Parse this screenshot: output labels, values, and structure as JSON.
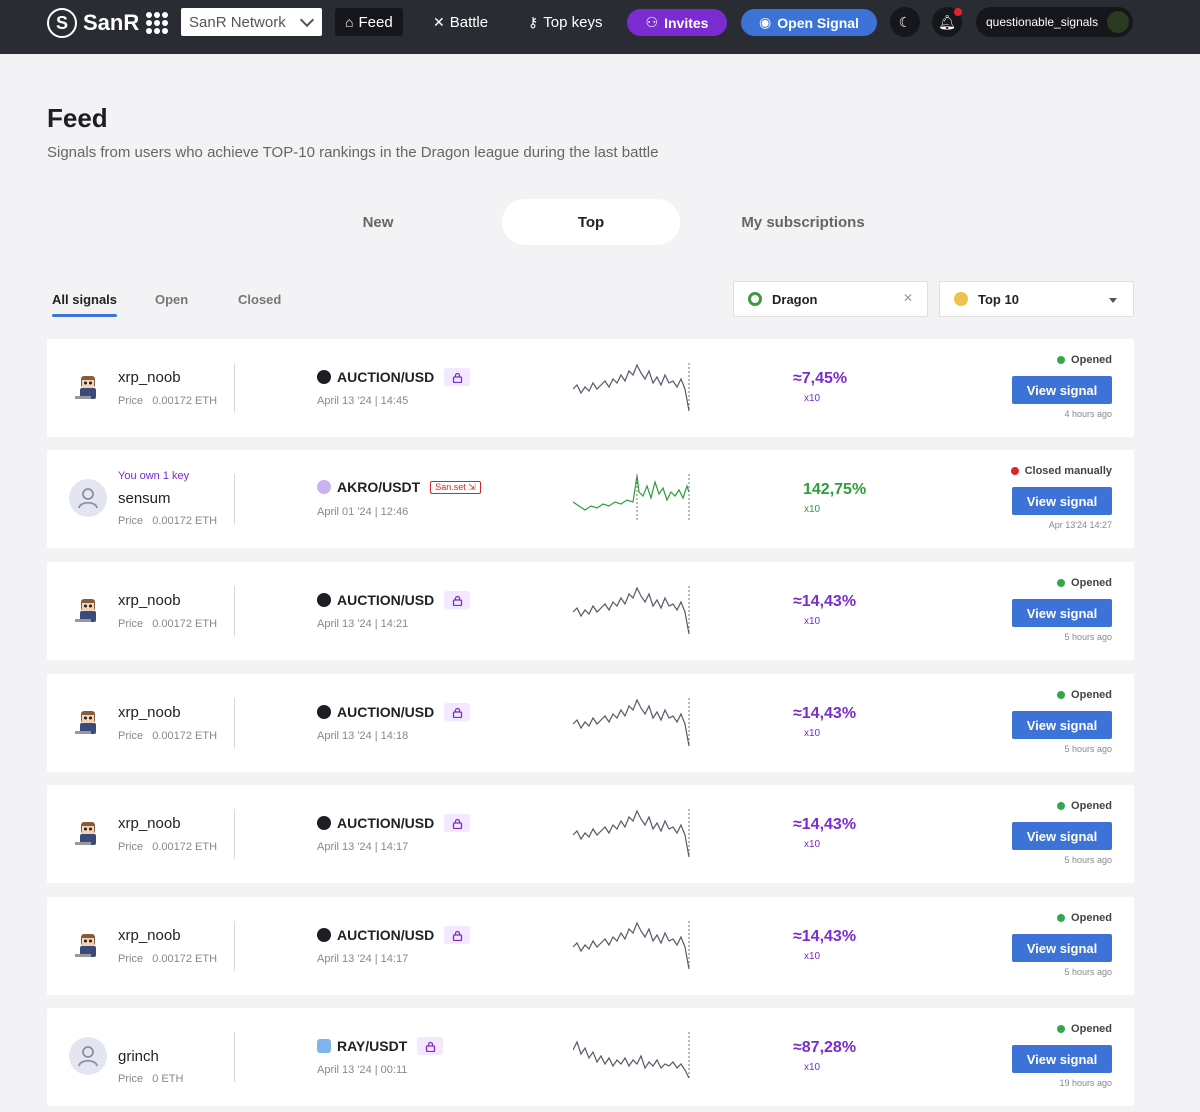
{
  "nav": {
    "logo_letter": "S",
    "logo_text": "SanR",
    "network": "SanR Network",
    "feed": "Feed",
    "battle": "Battle",
    "top_keys": "Top keys",
    "invites": "Invites",
    "open_signal": "Open Signal",
    "username": "questionable_signals"
  },
  "header": {
    "title": "Feed",
    "subtitle": "Signals from users who achieve TOP-10 rankings in the Dragon league during the last battle"
  },
  "main_tabs": [
    "New",
    "Top",
    "My subscriptions"
  ],
  "sub_tabs": [
    "All signals",
    "Open",
    "Closed"
  ],
  "filters": {
    "league": "Dragon",
    "rank": "Top 10"
  },
  "signals": [
    {
      "user": "xrp_noob",
      "price_label": "Price",
      "price": "0.00172 ETH",
      "pair": "AUCTION/USD",
      "date": "April 13 '24 | 14:45",
      "pct": "≈7,45%",
      "lev": "x10",
      "status": "Opened",
      "ago": "4 hours ago",
      "btn": "View signal"
    },
    {
      "user": "sensum",
      "owned_note": "You own 1 key",
      "price_label": "Price",
      "price": "0.00172 ETH",
      "pair": "AKRO/USDT",
      "tag": "San.set ⇲",
      "date": "April 01 '24 | 12:46",
      "pct": "142,75%",
      "lev": "x10",
      "status": "Closed manually",
      "ago": "Apr 13'24 14:27",
      "btn": "View signal"
    },
    {
      "user": "xrp_noob",
      "price_label": "Price",
      "price": "0.00172 ETH",
      "pair": "AUCTION/USD",
      "date": "April 13 '24 | 14:21",
      "pct": "≈14,43%",
      "lev": "x10",
      "status": "Opened",
      "ago": "5 hours ago",
      "btn": "View signal"
    },
    {
      "user": "xrp_noob",
      "price_label": "Price",
      "price": "0.00172 ETH",
      "pair": "AUCTION/USD",
      "date": "April 13 '24 | 14:18",
      "pct": "≈14,43%",
      "lev": "x10",
      "status": "Opened",
      "ago": "5 hours ago",
      "btn": "View signal"
    },
    {
      "user": "xrp_noob",
      "price_label": "Price",
      "price": "0.00172 ETH",
      "pair": "AUCTION/USD",
      "date": "April 13 '24 | 14:17",
      "pct": "≈14,43%",
      "lev": "x10",
      "status": "Opened",
      "ago": "5 hours ago",
      "btn": "View signal"
    },
    {
      "user": "xrp_noob",
      "price_label": "Price",
      "price": "0.00172 ETH",
      "pair": "AUCTION/USD",
      "date": "April 13 '24 | 14:17",
      "pct": "≈14,43%",
      "lev": "x10",
      "status": "Opened",
      "ago": "5 hours ago",
      "btn": "View signal"
    },
    {
      "user": "grinch",
      "price_label": "Price",
      "price": "0 ETH",
      "pair": "RAY/USDT",
      "date": "April 13 '24 | 00:11",
      "pct": "≈87,28%",
      "lev": "x10",
      "status": "Opened",
      "ago": "19 hours ago",
      "btn": "View signal"
    }
  ],
  "colors": {
    "accent": "#3d73d6",
    "purple": "#7a2bd1",
    "green": "#2d9e3b",
    "red": "#d8262c",
    "topbar": "#2a2c33"
  },
  "icons": {
    "theme": "moon-icon",
    "bell": "bell-icon",
    "lock": "lock-icon"
  }
}
